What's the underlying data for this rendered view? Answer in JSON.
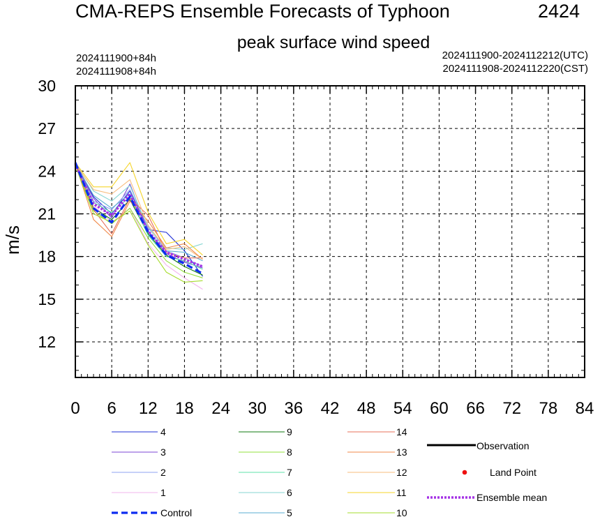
{
  "chart_data": {
    "type": "line",
    "title": "CMA-REPS Ensemble Forecasts of Typhoon",
    "typhoon_id": "2424",
    "subtitle": "peak surface wind speed",
    "init_utc": "2024111900+84h",
    "init_cst": "2024111908+84h",
    "range_utc": "2024111900-2024112212(UTC)",
    "range_cst": "2024111908-2024112220(CST)",
    "ylabel": "m/s",
    "xlabel": "",
    "xlim": [
      0,
      84
    ],
    "ylim": [
      9.5,
      30
    ],
    "xticks": [
      0,
      6,
      12,
      18,
      24,
      30,
      36,
      42,
      48,
      54,
      60,
      66,
      72,
      78,
      84
    ],
    "yticks": [
      12,
      15,
      18,
      21,
      24,
      27,
      30
    ],
    "grid": true,
    "legend_position": "bottom",
    "x": [
      0,
      3,
      6,
      9,
      12,
      15,
      18,
      21
    ],
    "series": [
      {
        "name": "4",
        "color": "#1f2fd6",
        "values": [
          24.6,
          22.2,
          21.0,
          22.6,
          19.9,
          19.7,
          18.4,
          16.6
        ]
      },
      {
        "name": "3",
        "color": "#7b45d6",
        "values": [
          24.5,
          22.1,
          20.7,
          23.1,
          19.8,
          18.2,
          17.6,
          17.2
        ]
      },
      {
        "name": "2",
        "color": "#8fa0f0",
        "values": [
          24.5,
          21.9,
          21.3,
          22.7,
          20.1,
          18.4,
          17.9,
          17.3
        ]
      },
      {
        "name": "1",
        "color": "#f2b4ee",
        "values": [
          24.4,
          21.6,
          20.4,
          21.4,
          18.9,
          17.4,
          16.5,
          15.7
        ]
      },
      {
        "name": "9",
        "color": "#0f7a0f",
        "values": [
          24.5,
          21.4,
          20.6,
          22.0,
          19.6,
          18.1,
          17.3,
          16.7
        ]
      },
      {
        "name": "8",
        "color": "#93e03c",
        "values": [
          24.4,
          21.2,
          20.3,
          21.4,
          19.3,
          17.7,
          16.9,
          16.5
        ]
      },
      {
        "name": "7",
        "color": "#5ee0a8",
        "values": [
          24.5,
          21.8,
          21.1,
          22.2,
          19.5,
          18.0,
          17.7,
          17.1
        ]
      },
      {
        "name": "6",
        "color": "#86d6d2",
        "values": [
          24.6,
          22.6,
          21.9,
          23.0,
          20.0,
          18.6,
          18.5,
          18.9
        ]
      },
      {
        "name": "5",
        "color": "#5aaed0",
        "values": [
          24.5,
          22.3,
          21.4,
          22.4,
          19.7,
          18.4,
          18.3,
          17.7
        ]
      },
      {
        "name": "14",
        "color": "#e8705a",
        "values": [
          24.6,
          21.3,
          19.6,
          22.1,
          20.9,
          18.3,
          17.9,
          17.9
        ]
      },
      {
        "name": "13",
        "color": "#f08a4a",
        "values": [
          24.5,
          20.6,
          19.4,
          21.9,
          20.5,
          18.6,
          18.9,
          17.8
        ]
      },
      {
        "name": "12",
        "color": "#f7bc7c",
        "values": [
          24.5,
          22.7,
          22.4,
          23.4,
          20.2,
          18.5,
          18.7,
          17.8
        ]
      },
      {
        "name": "11",
        "color": "#f5d52a",
        "values": [
          24.6,
          22.9,
          22.9,
          24.6,
          21.1,
          18.9,
          19.2,
          18.1
        ]
      },
      {
        "name": "10",
        "color": "#a6dc2c",
        "values": [
          24.4,
          21.0,
          20.4,
          21.2,
          18.8,
          16.9,
          16.2,
          16.3
        ]
      },
      {
        "name": "Control",
        "color": "#0d2cf0",
        "values": [
          24.6,
          21.4,
          20.4,
          22.2,
          19.7,
          18.1,
          17.5,
          16.8
        ]
      },
      {
        "name": "Ensemble mean",
        "color": "#a533e6",
        "values": [
          24.5,
          21.7,
          20.9,
          22.4,
          19.8,
          18.3,
          17.8,
          17.3
        ]
      }
    ],
    "observation": {
      "name": "Observation",
      "color": "#000000",
      "values": []
    },
    "land_point": {
      "name": "Land Point",
      "color": "#ee1010",
      "values": []
    }
  }
}
